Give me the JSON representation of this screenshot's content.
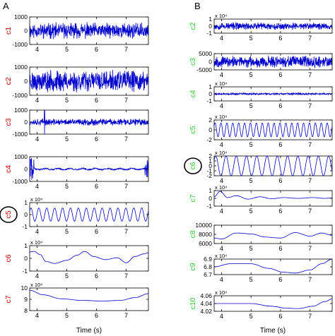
{
  "chart_data": [
    {
      "type": "line",
      "panel_label": "A",
      "xlabel": "Time (s)",
      "xlim": [
        3.75,
        7.75
      ],
      "xticks": [
        "4",
        "5",
        "6",
        "7"
      ],
      "label_color": "#cc0000",
      "series_color": "#0000cc",
      "subplots": [
        {
          "label": "c1",
          "ylim": [
            -1000,
            1000
          ],
          "yticks": [
            "1000",
            "0",
            "-1000"
          ],
          "exponent": "",
          "signal": {
            "kind": "noise",
            "amp": 0.42,
            "seed": 11
          }
        },
        {
          "label": "c2",
          "ylim": [
            -1000,
            1000
          ],
          "yticks": [
            "1000",
            "0",
            "-1000"
          ],
          "exponent": "",
          "signal": {
            "kind": "noise",
            "amp": 0.55,
            "seed": 23
          }
        },
        {
          "label": "c3",
          "ylim": [
            -1000,
            1000
          ],
          "yticks": [
            "1000",
            "0",
            "-1000"
          ],
          "exponent": "",
          "signal": {
            "kind": "noise_spike",
            "amp": 0.2,
            "seed": 37,
            "spike_x": 4.25,
            "spike_amp": 1.4
          }
        },
        {
          "label": "c4",
          "ylim": [
            -1000,
            1000
          ],
          "yticks": [
            "1000",
            "0",
            "-1000"
          ],
          "exponent": "",
          "signal": {
            "kind": "wobble",
            "amp": 0.12,
            "seed": 41
          }
        },
        {
          "label": "c5",
          "ylim": [
            -1,
            1
          ],
          "yticks": [
            "1",
            "0",
            "-1"
          ],
          "exponent": "x 10⁴",
          "circled": true,
          "signal": {
            "kind": "osc",
            "amp": 0.55,
            "cycles": 15
          }
        },
        {
          "label": "c6",
          "ylim": [
            -1,
            1
          ],
          "yticks": [
            "1",
            "0",
            "-1"
          ],
          "exponent": "x 10⁴",
          "signal": {
            "kind": "points",
            "x": [
              3.75,
              3.9,
              4.1,
              4.3,
              4.6,
              5.0,
              5.35,
              5.6,
              5.9,
              6.3,
              6.7,
              7.0,
              7.3,
              7.6,
              7.75
            ],
            "y": [
              0.5,
              0.55,
              0.3,
              -0.25,
              -0.4,
              -0.15,
              0.25,
              0.55,
              0.15,
              -0.1,
              0.05,
              -0.35,
              0.15,
              0.35,
              0.45
            ]
          }
        },
        {
          "label": "c7",
          "ylim": [
            8,
            10
          ],
          "yticks": [
            "10",
            "9",
            "8"
          ],
          "exponent": "x 10⁴",
          "signal": {
            "kind": "points",
            "x": [
              3.75,
              4.2,
              4.8,
              5.5,
              6.2,
              6.8,
              7.3,
              7.75
            ],
            "y": [
              9.8,
              9.4,
              9.05,
              8.9,
              8.85,
              8.9,
              9.15,
              9.5
            ]
          }
        }
      ]
    },
    {
      "type": "line",
      "panel_label": "B",
      "xlabel": "Time (s)",
      "xlim": [
        3.75,
        7.75
      ],
      "xticks": [
        "4",
        "5",
        "6",
        "7"
      ],
      "label_color": "#33cc33",
      "series_color": "#0000cc",
      "subplots": [
        {
          "label": "c2",
          "ylim": [
            -1,
            1
          ],
          "yticks": [
            "1",
            "0",
            "-1"
          ],
          "exponent": "x 10⁴",
          "signal": {
            "kind": "noise",
            "amp": 0.38,
            "seed": 53
          }
        },
        {
          "label": "c3",
          "ylim": [
            -5000,
            5000
          ],
          "yticks": [
            "5000",
            "0",
            "-5000"
          ],
          "exponent": "",
          "signal": {
            "kind": "noise",
            "amp": 0.5,
            "seed": 67
          }
        },
        {
          "label": "c4",
          "ylim": [
            -1,
            1
          ],
          "yticks": [
            "1",
            "0",
            "-1"
          ],
          "exponent": "x 10⁴",
          "signal": {
            "kind": "noise",
            "amp": 0.12,
            "seed": 79
          }
        },
        {
          "label": "c5",
          "ylim": [
            -2,
            2
          ],
          "yticks": [
            "2",
            "0",
            "-2"
          ],
          "exponent": "x 10⁴",
          "signal": {
            "kind": "osc",
            "amp": 0.7,
            "cycles": 20
          }
        },
        {
          "label": "c6",
          "ylim": [
            -2,
            2
          ],
          "yticks": [
            "2",
            "1",
            "0",
            "-1",
            "-2"
          ],
          "exponent": "x 10⁴",
          "circled": true,
          "signal": {
            "kind": "osc",
            "amp": 1.0,
            "cycles": 11.5
          }
        },
        {
          "label": "c7",
          "ylim": [
            -1,
            1
          ],
          "yticks": [
            "1",
            "0",
            "-1"
          ],
          "exponent": "x 10⁴",
          "signal": {
            "kind": "points",
            "x": [
              3.75,
              3.95,
              4.2,
              4.5,
              4.9,
              5.3,
              5.7,
              6.1,
              6.6,
              7.1,
              7.5,
              7.75
            ],
            "y": [
              0.2,
              0.9,
              0.1,
              0.35,
              -0.1,
              0.2,
              -0.05,
              0.1,
              0.0,
              0.1,
              0.0,
              0.05
            ]
          }
        },
        {
          "label": "c8",
          "ylim": [
            6000,
            10000
          ],
          "yticks": [
            "10000",
            "8000",
            "6000"
          ],
          "exponent": "",
          "signal": {
            "kind": "points",
            "x": [
              3.75,
              4.0,
              4.5,
              5.0,
              5.5,
              6.0,
              6.5,
              7.0,
              7.4,
              7.75
            ],
            "y": [
              7200,
              7000,
              8300,
              8100,
              7400,
              7200,
              8400,
              7600,
              8300,
              7800
            ]
          }
        },
        {
          "label": "c9",
          "ylim": [
            6.7,
            6.9
          ],
          "yticks": [
            "6.9",
            "6.8",
            "6.7"
          ],
          "exponent": "x 10⁴",
          "signal": {
            "kind": "points",
            "x": [
              3.75,
              4.3,
              5.0,
              5.6,
              6.1,
              6.5,
              7.0,
              7.4,
              7.75
            ],
            "y": [
              6.8,
              6.84,
              6.84,
              6.78,
              6.73,
              6.72,
              6.76,
              6.84,
              6.9
            ]
          }
        },
        {
          "label": "c10",
          "ylim": [
            4.02,
            4.06
          ],
          "yticks": [
            "4.06",
            "4.04",
            "4.02"
          ],
          "exponent": "x 10⁴",
          "signal": {
            "kind": "points",
            "x": [
              3.75,
              4.3,
              5.0,
              5.7,
              6.2,
              6.6,
              7.1,
              7.5,
              7.75
            ],
            "y": [
              4.04,
              4.04,
              4.04,
              4.033,
              4.028,
              4.027,
              4.033,
              4.045,
              4.052
            ]
          }
        }
      ]
    }
  ]
}
